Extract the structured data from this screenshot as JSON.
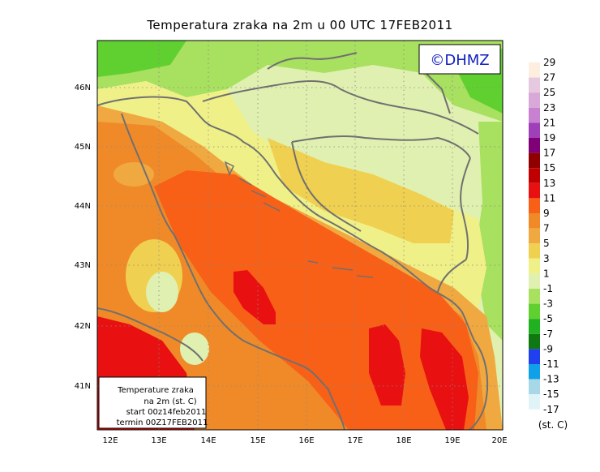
{
  "title": "Temperatura zraka na 2m u 00 UTC 17FEB2011",
  "logo": "©DHMZ",
  "lat_labels": [
    "46N",
    "45N",
    "44N",
    "43N",
    "42N",
    "41N"
  ],
  "lon_labels": [
    "12E",
    "13E",
    "14E",
    "15E",
    "16E",
    "17E",
    "18E",
    "19E",
    "20E"
  ],
  "info": {
    "line1": "Temperature zraka",
    "line2": "na 2m (st. C)",
    "line3": "start 00z14feb2011",
    "line4": "termin 00Z17FEB2011"
  },
  "colorbar": {
    "unit": "(st. C)",
    "labels": [
      "29",
      "27",
      "25",
      "23",
      "21",
      "19",
      "17",
      "15",
      "13",
      "11",
      "9",
      "7",
      "5",
      "3",
      "1",
      "-1",
      "-3",
      "-5",
      "-7",
      "-9",
      "-11",
      "-13",
      "-15",
      "-17"
    ],
    "colors": [
      "#fdeee0",
      "#e6c8e0",
      "#d8a8d8",
      "#c880d0",
      "#a040b8",
      "#800078",
      "#900000",
      "#c00000",
      "#e81010",
      "#f86018",
      "#f08a28",
      "#f0a840",
      "#f0d050",
      "#f0f088",
      "#e0f0b0",
      "#a8e060",
      "#60d030",
      "#20b020",
      "#107810",
      "#2040f0",
      "#10a0e8",
      "#a8d8e8",
      "#e0f4f8"
    ]
  }
}
